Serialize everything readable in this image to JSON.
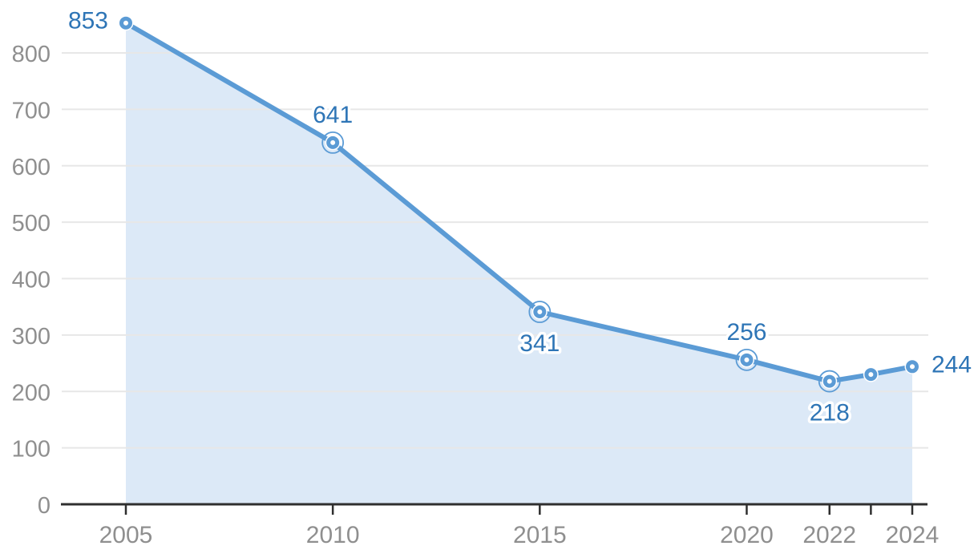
{
  "chart_data": {
    "type": "area",
    "title": "",
    "xlabel": "",
    "ylabel": "",
    "x": [
      2005,
      2010,
      2015,
      2020,
      2022,
      2023,
      2024
    ],
    "values": [
      853,
      641,
      341,
      256,
      218,
      230,
      244
    ],
    "point_labels": [
      "853",
      "641",
      "341",
      "256",
      "218",
      "",
      "244"
    ],
    "label_placement": [
      "left",
      "top",
      "bottom",
      "top",
      "bottom",
      "none",
      "right"
    ],
    "ringed_markers": [
      false,
      true,
      true,
      true,
      true,
      false,
      false
    ],
    "x_ticks": [
      {
        "year": 2005,
        "label": "2005"
      },
      {
        "year": 2010,
        "label": "2010"
      },
      {
        "year": 2015,
        "label": "2015"
      },
      {
        "year": 2020,
        "label": "2020"
      },
      {
        "year": 2022,
        "label": "2022"
      },
      {
        "year": 2023,
        "label": ""
      },
      {
        "year": 2024,
        "label": "2024"
      }
    ],
    "y_ticks": [
      0,
      100,
      200,
      300,
      400,
      500,
      600,
      700,
      800
    ],
    "xlim": [
      2005,
      2024
    ],
    "ylim": [
      0,
      870
    ],
    "grid": "horizontal",
    "legend": "none",
    "colors": {
      "line": "#5b9bd5",
      "marker": "#5b9bd5",
      "marker_ring": "#5b9bd5",
      "area_fill": "#dce9f7",
      "data_label": "#2e75b6",
      "grid_line": "#e7e7e7",
      "axis_line": "#2f2f2f",
      "tick_text": "#8f8f8f"
    }
  }
}
